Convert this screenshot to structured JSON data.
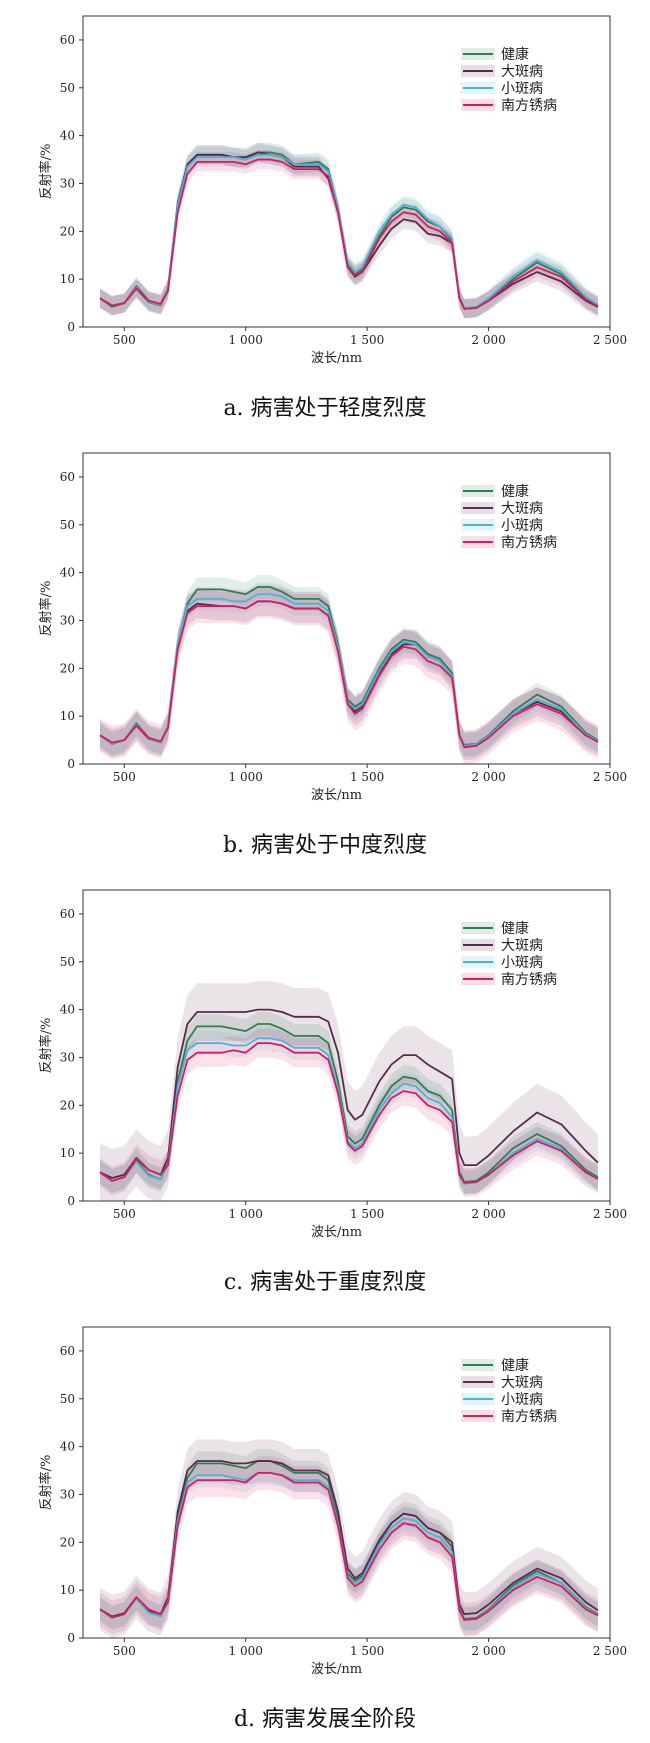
{
  "panels": [
    {
      "caption": "a. 病害处于轻度烈度"
    },
    {
      "caption": "b. 病害处于中度烈度"
    },
    {
      "caption": "c. 病害处于重度烈度"
    },
    {
      "caption": "d. 病害发展全阶段"
    }
  ],
  "colors": {
    "健康": "#2e7d4f",
    "大斑病": "#5a2a4e",
    "小斑病": "#4ab3d6",
    "南方锈病": "#d81b60"
  },
  "chart_data": [
    {
      "type": "line",
      "title": "",
      "xlabel": "波长/nm",
      "ylabel": "反射率/%",
      "xlim": [
        330,
        2500
      ],
      "ylim": [
        0,
        65
      ],
      "xticks": [
        500,
        1000,
        1500,
        2000,
        2500
      ],
      "xtick_labels": [
        "500",
        "1 000",
        "1 500",
        "2 000",
        "2 500"
      ],
      "yticks": [
        0,
        10,
        20,
        30,
        40,
        50,
        60
      ],
      "ytick_labels": [
        "0",
        "10",
        "20",
        "30",
        "40",
        "50",
        "60"
      ],
      "legend_position": "top-right",
      "legend": [
        "健康",
        "大斑病",
        "小斑病",
        "南方锈病"
      ],
      "x": [
        400,
        450,
        500,
        550,
        600,
        650,
        680,
        720,
        760,
        800,
        900,
        950,
        1000,
        1050,
        1100,
        1150,
        1200,
        1300,
        1340,
        1380,
        1420,
        1450,
        1480,
        1550,
        1600,
        1650,
        1700,
        1750,
        1800,
        1850,
        1880,
        1900,
        1950,
        2000,
        2100,
        2200,
        2300,
        2400,
        2450
      ],
      "series": [
        {
          "name": "健康",
          "band": 2,
          "values": [
            6.0,
            4.2,
            5.0,
            8.0,
            5.2,
            4.5,
            8.0,
            25.0,
            33.5,
            36.0,
            36.0,
            35.5,
            35.0,
            36.5,
            36.5,
            36.0,
            34.0,
            34.5,
            33.0,
            25.0,
            13.0,
            11.0,
            12.0,
            19.0,
            23.0,
            25.0,
            24.5,
            22.0,
            21.0,
            18.0,
            6.0,
            3.8,
            4.0,
            5.5,
            10.0,
            13.5,
            11.0,
            6.0,
            4.5
          ]
        },
        {
          "name": "大斑病",
          "band": 2,
          "values": [
            6.0,
            4.5,
            5.0,
            8.5,
            5.5,
            4.8,
            8.0,
            26.0,
            34.0,
            36.0,
            36.0,
            35.5,
            35.5,
            36.5,
            36.0,
            35.5,
            33.5,
            33.5,
            31.0,
            24.0,
            12.5,
            10.5,
            11.5,
            17.0,
            20.5,
            22.5,
            22.0,
            19.5,
            19.0,
            17.5,
            6.0,
            3.8,
            4.0,
            5.5,
            9.0,
            11.5,
            9.5,
            5.5,
            4.2
          ]
        },
        {
          "name": "小斑病",
          "band": 2,
          "values": [
            6.0,
            4.5,
            5.0,
            8.3,
            5.3,
            4.6,
            8.0,
            25.5,
            33.5,
            35.5,
            35.5,
            35.5,
            35.0,
            36.0,
            36.0,
            35.5,
            34.0,
            34.0,
            32.5,
            25.0,
            13.5,
            11.5,
            12.5,
            20.0,
            23.5,
            25.5,
            25.0,
            22.5,
            21.0,
            18.5,
            6.5,
            4.0,
            4.2,
            6.0,
            10.5,
            14.0,
            11.5,
            6.3,
            4.6
          ]
        },
        {
          "name": "南方锈病",
          "band": 2,
          "values": [
            6.0,
            4.5,
            5.0,
            8.0,
            5.5,
            4.8,
            7.5,
            24.0,
            32.0,
            34.5,
            34.5,
            34.5,
            34.0,
            35.0,
            35.0,
            34.5,
            33.0,
            33.0,
            31.5,
            24.0,
            12.5,
            10.8,
            11.5,
            18.5,
            22.0,
            24.0,
            23.5,
            21.0,
            20.0,
            17.5,
            6.0,
            3.8,
            4.0,
            5.5,
            9.5,
            12.5,
            10.5,
            5.8,
            4.3
          ]
        }
      ]
    },
    {
      "type": "line",
      "title": "",
      "xlabel": "波长/nm",
      "ylabel": "反射率/%",
      "xlim": [
        330,
        2500
      ],
      "ylim": [
        0,
        65
      ],
      "xticks": [
        500,
        1000,
        1500,
        2000,
        2500
      ],
      "xtick_labels": [
        "500",
        "1 000",
        "1 500",
        "2 000",
        "2 500"
      ],
      "yticks": [
        0,
        10,
        20,
        30,
        40,
        50,
        60
      ],
      "ytick_labels": [
        "0",
        "10",
        "20",
        "30",
        "40",
        "50",
        "60"
      ],
      "legend_position": "top-right",
      "legend": [
        "健康",
        "大斑病",
        "小斑病",
        "南方锈病"
      ],
      "x": [
        400,
        450,
        500,
        550,
        600,
        650,
        680,
        720,
        760,
        800,
        900,
        950,
        1000,
        1050,
        1100,
        1150,
        1200,
        1300,
        1340,
        1380,
        1420,
        1450,
        1480,
        1550,
        1600,
        1650,
        1700,
        1750,
        1800,
        1850,
        1880,
        1900,
        1950,
        2000,
        2100,
        2200,
        2300,
        2400,
        2450
      ],
      "series": [
        {
          "name": "健康",
          "band": 2.5,
          "values": [
            6.0,
            4.2,
            5.0,
            8.5,
            5.5,
            4.5,
            8.0,
            25.0,
            33.5,
            36.5,
            36.5,
            36.0,
            35.5,
            37.0,
            37.0,
            36.0,
            34.5,
            34.5,
            33.0,
            25.0,
            13.5,
            12.0,
            13.0,
            20.0,
            24.0,
            26.0,
            25.5,
            23.0,
            22.0,
            19.0,
            6.0,
            4.0,
            4.2,
            6.0,
            11.0,
            14.5,
            12.0,
            6.5,
            5.0
          ]
        },
        {
          "name": "大斑病",
          "band": 3,
          "values": [
            6.0,
            4.3,
            5.0,
            8.0,
            5.3,
            4.5,
            7.8,
            24.5,
            32.0,
            33.5,
            33.0,
            33.0,
            32.5,
            34.0,
            34.0,
            33.5,
            32.5,
            32.5,
            31.0,
            24.0,
            13.0,
            11.0,
            12.0,
            19.0,
            23.0,
            25.0,
            25.0,
            22.5,
            21.5,
            18.5,
            6.0,
            3.8,
            4.0,
            5.8,
            10.5,
            13.0,
            11.0,
            6.0,
            4.8
          ]
        },
        {
          "name": "小斑病",
          "band": 2.5,
          "values": [
            6.0,
            4.3,
            5.0,
            8.2,
            5.4,
            4.5,
            8.0,
            25.0,
            33.0,
            34.5,
            34.5,
            34.0,
            34.0,
            35.5,
            35.5,
            35.0,
            33.5,
            33.5,
            32.0,
            24.5,
            13.0,
            11.5,
            12.5,
            19.5,
            23.5,
            25.5,
            25.0,
            22.5,
            21.5,
            18.5,
            6.0,
            3.8,
            4.1,
            5.8,
            10.5,
            13.5,
            11.5,
            6.2,
            4.8
          ]
        },
        {
          "name": "南方锈病",
          "band": 3.5,
          "values": [
            6.0,
            4.5,
            5.0,
            8.0,
            5.5,
            4.7,
            7.5,
            24.0,
            31.5,
            33.0,
            33.0,
            33.0,
            32.5,
            34.0,
            34.0,
            33.5,
            32.5,
            32.5,
            31.0,
            23.5,
            12.5,
            10.5,
            11.5,
            18.5,
            22.5,
            24.5,
            24.0,
            21.5,
            20.5,
            18.0,
            6.0,
            3.5,
            3.8,
            5.5,
            10.0,
            12.5,
            10.5,
            6.0,
            4.6
          ]
        }
      ]
    },
    {
      "type": "line",
      "title": "",
      "xlabel": "波长/nm",
      "ylabel": "反射率/%",
      "xlim": [
        330,
        2500
      ],
      "ylim": [
        0,
        65
      ],
      "xticks": [
        500,
        1000,
        1500,
        2000,
        2500
      ],
      "xtick_labels": [
        "500",
        "1 000",
        "1 500",
        "2 000",
        "2 500"
      ],
      "yticks": [
        0,
        10,
        20,
        30,
        40,
        50,
        60
      ],
      "ytick_labels": [
        "0",
        "10",
        "20",
        "30",
        "40",
        "50",
        "60"
      ],
      "legend_position": "top-right",
      "legend": [
        "健康",
        "大斑病",
        "小斑病",
        "南方锈病"
      ],
      "x": [
        400,
        450,
        500,
        550,
        600,
        650,
        680,
        720,
        760,
        800,
        900,
        950,
        1000,
        1050,
        1100,
        1150,
        1200,
        1300,
        1340,
        1380,
        1420,
        1450,
        1480,
        1550,
        1600,
        1650,
        1700,
        1750,
        1800,
        1850,
        1880,
        1900,
        1950,
        2000,
        2100,
        2200,
        2300,
        2400,
        2450
      ],
      "series": [
        {
          "name": "健康",
          "band": 2.5,
          "values": [
            6.0,
            4.2,
            5.0,
            8.5,
            5.5,
            4.5,
            8.0,
            25.0,
            33.5,
            36.5,
            36.5,
            36.0,
            35.5,
            37.0,
            37.0,
            36.0,
            34.5,
            34.5,
            33.0,
            25.0,
            13.5,
            12.0,
            13.0,
            20.0,
            24.0,
            26.0,
            25.5,
            23.0,
            22.0,
            19.0,
            6.0,
            4.0,
            4.2,
            6.0,
            11.0,
            14.0,
            11.5,
            6.5,
            5.0
          ]
        },
        {
          "name": "大斑病",
          "band": 6,
          "values": [
            6.0,
            4.8,
            5.5,
            9.0,
            6.5,
            5.5,
            9.0,
            28.0,
            37.0,
            39.5,
            39.5,
            39.5,
            39.5,
            40.0,
            40.0,
            39.5,
            38.5,
            38.5,
            37.5,
            31.0,
            19.0,
            17.0,
            18.0,
            25.0,
            28.5,
            30.5,
            30.5,
            28.5,
            27.0,
            25.5,
            10.0,
            7.5,
            7.5,
            9.5,
            14.5,
            18.5,
            16.0,
            10.5,
            8.0
          ]
        },
        {
          "name": "小斑病",
          "band": 2.5,
          "values": [
            6.0,
            4.2,
            5.0,
            8.2,
            5.3,
            4.5,
            7.8,
            24.0,
            31.5,
            33.0,
            33.0,
            32.5,
            32.5,
            34.0,
            34.0,
            33.5,
            32.0,
            32.0,
            30.5,
            23.5,
            12.5,
            11.0,
            12.0,
            19.0,
            22.5,
            24.5,
            24.0,
            21.5,
            20.5,
            17.5,
            5.5,
            3.6,
            3.9,
            5.5,
            10.0,
            13.0,
            11.0,
            6.0,
            4.6
          ]
        },
        {
          "name": "南方锈病",
          "band": 3,
          "values": [
            6.0,
            4.2,
            5.0,
            8.8,
            6.5,
            5.5,
            7.5,
            22.0,
            29.5,
            31.0,
            31.0,
            31.5,
            31.0,
            33.0,
            33.0,
            32.5,
            31.0,
            31.0,
            29.5,
            22.5,
            12.0,
            10.5,
            11.5,
            18.0,
            21.5,
            23.0,
            22.5,
            20.0,
            19.0,
            16.5,
            5.5,
            3.8,
            4.0,
            5.5,
            9.5,
            12.5,
            10.5,
            6.0,
            4.6
          ]
        }
      ]
    },
    {
      "type": "line",
      "title": "",
      "xlabel": "波长/nm",
      "ylabel": "反射率/%",
      "xlim": [
        330,
        2500
      ],
      "ylim": [
        0,
        65
      ],
      "xticks": [
        500,
        1000,
        1500,
        2000,
        2500
      ],
      "xtick_labels": [
        "500",
        "1 000",
        "1 500",
        "2 000",
        "2 500"
      ],
      "yticks": [
        0,
        10,
        20,
        30,
        40,
        50,
        60
      ],
      "ytick_labels": [
        "0",
        "10",
        "20",
        "30",
        "40",
        "50",
        "60"
      ],
      "legend_position": "top-right",
      "legend": [
        "健康",
        "大斑病",
        "小斑病",
        "南方锈病"
      ],
      "x": [
        400,
        450,
        500,
        550,
        600,
        650,
        680,
        720,
        760,
        800,
        900,
        950,
        1000,
        1050,
        1100,
        1150,
        1200,
        1300,
        1340,
        1380,
        1420,
        1450,
        1480,
        1550,
        1600,
        1650,
        1700,
        1750,
        1800,
        1850,
        1880,
        1900,
        1950,
        2000,
        2100,
        2200,
        2300,
        2400,
        2450
      ],
      "series": [
        {
          "name": "健康",
          "band": 2.5,
          "values": [
            6.0,
            4.2,
            5.0,
            8.5,
            5.5,
            4.5,
            8.0,
            25.0,
            33.5,
            36.5,
            36.5,
            36.0,
            35.5,
            37.0,
            37.0,
            36.0,
            34.5,
            34.5,
            33.0,
            25.0,
            13.5,
            12.0,
            13.0,
            20.0,
            24.0,
            26.0,
            25.5,
            23.0,
            22.0,
            19.0,
            6.0,
            4.0,
            4.2,
            6.0,
            11.0,
            14.0,
            11.5,
            6.5,
            5.0
          ]
        },
        {
          "name": "大斑病",
          "band": 4.5,
          "values": [
            6.0,
            4.5,
            5.2,
            8.5,
            5.8,
            5.0,
            8.5,
            26.5,
            35.0,
            37.0,
            37.0,
            36.5,
            36.5,
            37.0,
            37.0,
            36.5,
            35.0,
            35.0,
            34.0,
            26.5,
            14.5,
            12.5,
            13.5,
            20.5,
            24.0,
            26.0,
            25.5,
            23.0,
            22.0,
            20.0,
            7.0,
            5.0,
            5.2,
            7.0,
            11.5,
            14.5,
            12.5,
            7.5,
            5.8
          ]
        },
        {
          "name": "小斑病",
          "band": 2.5,
          "values": [
            6.0,
            4.2,
            5.0,
            8.2,
            5.3,
            4.5,
            7.8,
            24.5,
            32.5,
            34.0,
            34.0,
            33.5,
            33.0,
            34.5,
            34.5,
            34.0,
            33.0,
            33.0,
            31.5,
            24.0,
            13.0,
            11.5,
            12.5,
            19.5,
            23.0,
            25.0,
            24.5,
            22.0,
            21.0,
            18.0,
            5.8,
            3.8,
            4.0,
            5.8,
            10.5,
            13.5,
            11.5,
            6.3,
            4.8
          ]
        },
        {
          "name": "南方锈病",
          "band": 3.5,
          "values": [
            6.0,
            4.3,
            5.0,
            8.5,
            6.0,
            5.0,
            7.5,
            23.5,
            31.5,
            33.0,
            33.0,
            33.0,
            32.5,
            34.5,
            34.5,
            34.0,
            32.5,
            32.5,
            31.0,
            23.5,
            12.5,
            10.8,
            11.8,
            18.5,
            22.0,
            24.0,
            23.5,
            21.0,
            20.0,
            17.0,
            5.8,
            3.8,
            4.0,
            5.6,
            10.0,
            12.8,
            10.8,
            6.0,
            4.7
          ]
        }
      ]
    }
  ]
}
